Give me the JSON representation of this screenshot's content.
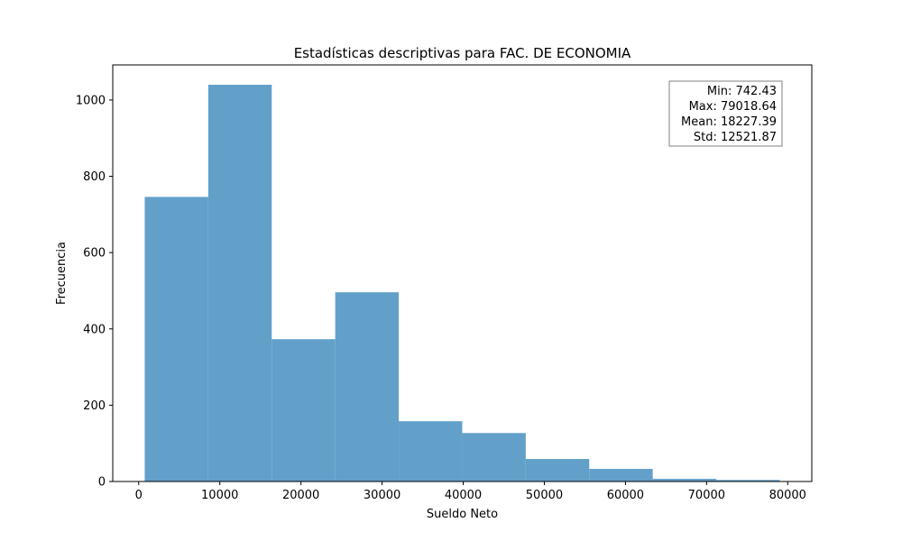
{
  "chart_data": {
    "type": "bar",
    "title": "Estadísticas descriptivas para FAC. DE ECONOMIA",
    "xlabel": "Sueldo Neto",
    "ylabel": "Frecuencia",
    "bin_edges": [
      742.43,
      8570.05,
      16397.67,
      24225.29,
      32052.91,
      39880.53,
      47708.16,
      55535.78,
      63363.4,
      71191.02,
      79018.64
    ],
    "values": [
      746,
      1040,
      373,
      496,
      158,
      127,
      59,
      33,
      7,
      4
    ],
    "xlim": [
      -3200,
      82970
    ],
    "ylim": [
      0,
      1092
    ],
    "x_ticks": [
      0,
      10000,
      20000,
      30000,
      40000,
      50000,
      60000,
      70000,
      80000
    ],
    "y_ticks": [
      0,
      200,
      400,
      600,
      800,
      1000
    ],
    "grid": false,
    "bar_color": "#62a0ca",
    "stats": {
      "min": "Min: 742.43",
      "max": "Max: 79018.64",
      "mean": "Mean: 18227.39",
      "std": "Std: 12521.87"
    },
    "stats_placement": "top-right"
  }
}
